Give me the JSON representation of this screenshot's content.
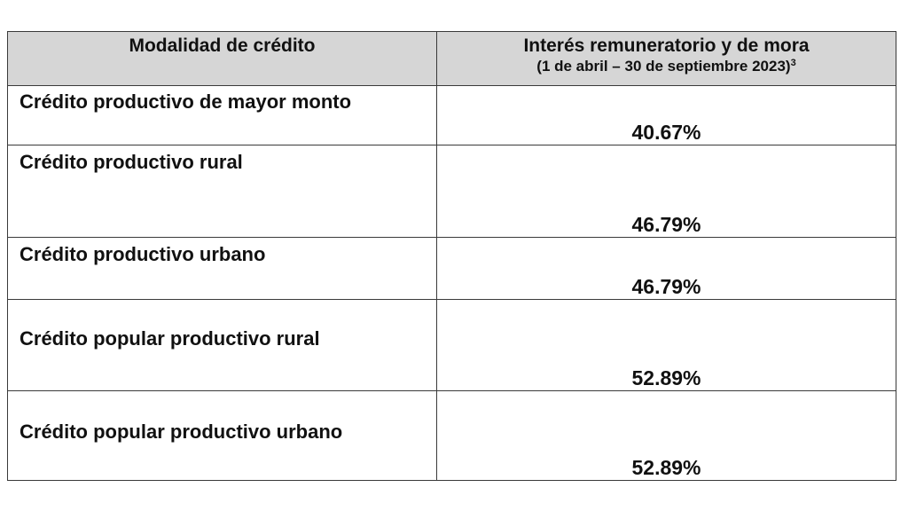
{
  "table": {
    "headers": {
      "col1": "Modalidad de crédito",
      "col2_main": "Interés remuneratorio y de mora",
      "col2_sub": "(1 de abril – 30 de septiembre 2023)",
      "col2_footnote": "3"
    },
    "rows": [
      {
        "modalidad": "Crédito productivo de mayor monto",
        "interes": "40.67%"
      },
      {
        "modalidad": "Crédito productivo rural",
        "interes": "46.79%"
      },
      {
        "modalidad": "Crédito productivo urbano",
        "interes": "46.79%"
      },
      {
        "modalidad": "Crédito popular productivo rural",
        "interes": "52.89%"
      },
      {
        "modalidad": "Crédito popular productivo urbano",
        "interes": "52.89%"
      }
    ]
  }
}
